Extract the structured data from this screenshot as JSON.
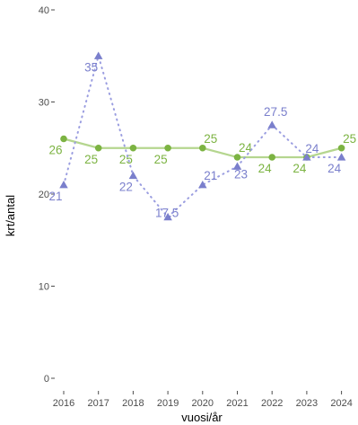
{
  "chart_data": {
    "type": "line",
    "xlabel": "vuosi/år",
    "ylabel": "krt/antal",
    "categories": [
      "2016",
      "2017",
      "2018",
      "2019",
      "2020",
      "2021",
      "2022",
      "2023",
      "2024"
    ],
    "ylim": [
      0,
      40
    ],
    "yticks": [
      "0",
      "10",
      "20",
      "30",
      "40"
    ],
    "grid": false,
    "series": [
      {
        "style": "solid",
        "marker": "circle",
        "color": "#7cb342",
        "line_color": "#b5d68f",
        "values": [
          26,
          25,
          25,
          25,
          25,
          24,
          24,
          24,
          25
        ],
        "labels": [
          "26",
          "25",
          "25",
          "25",
          "25",
          "24",
          "24",
          "24",
          "25"
        ]
      },
      {
        "style": "dotted",
        "marker": "triangle",
        "color": "#7a7fcc",
        "line_color": "#9a9de0",
        "values": [
          21,
          35,
          22,
          17.5,
          21,
          23,
          27.5,
          24,
          24
        ],
        "labels": [
          "21",
          "35",
          "22",
          "17.5",
          "21",
          "23",
          "27.5",
          "24",
          "24"
        ]
      }
    ]
  }
}
